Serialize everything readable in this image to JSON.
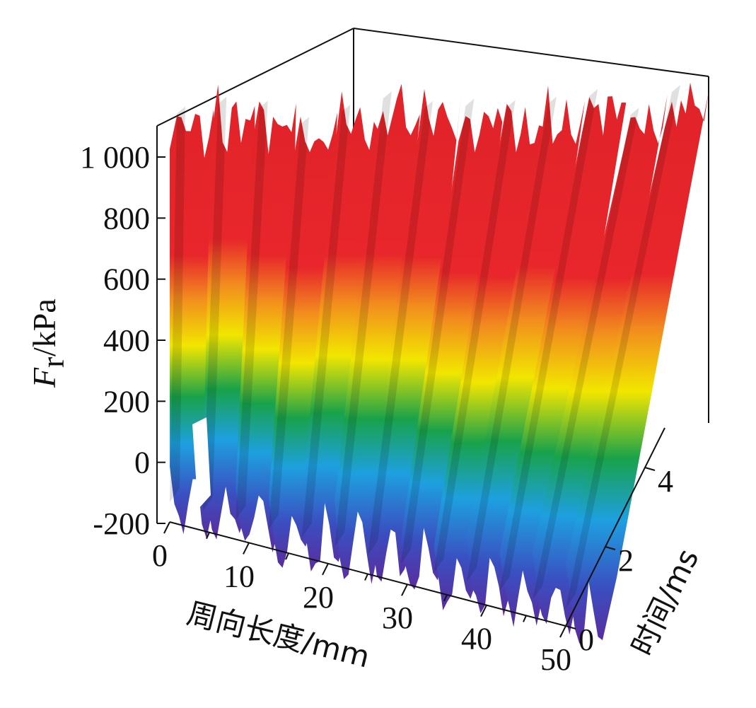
{
  "chart_data": {
    "type": "surface3d",
    "title": "",
    "zlabel": {
      "main": "F",
      "sub": "r",
      "unit": "/kPa"
    },
    "xlabel": "周向长度/mm",
    "ylabel": "时间/ms",
    "x_ticks": [
      "0",
      "10",
      "20",
      "30",
      "40",
      "50"
    ],
    "y_ticks": [
      "0",
      "2",
      "4"
    ],
    "z_ticks": [
      "-200",
      "0",
      "200",
      "400",
      "600",
      "800",
      "1 000"
    ],
    "xlim": [
      0,
      50
    ],
    "ylim": [
      0,
      5
    ],
    "zlim": [
      -200,
      1100
    ],
    "ridge_count": 13,
    "colormap": [
      "#5b2b9e",
      "#3a4fc0",
      "#1ea0e0",
      "#19a24a",
      "#f2e600",
      "#f28c1e",
      "#e8262b"
    ],
    "z_peak_approx": 1100,
    "z_trough_approx": -150
  }
}
